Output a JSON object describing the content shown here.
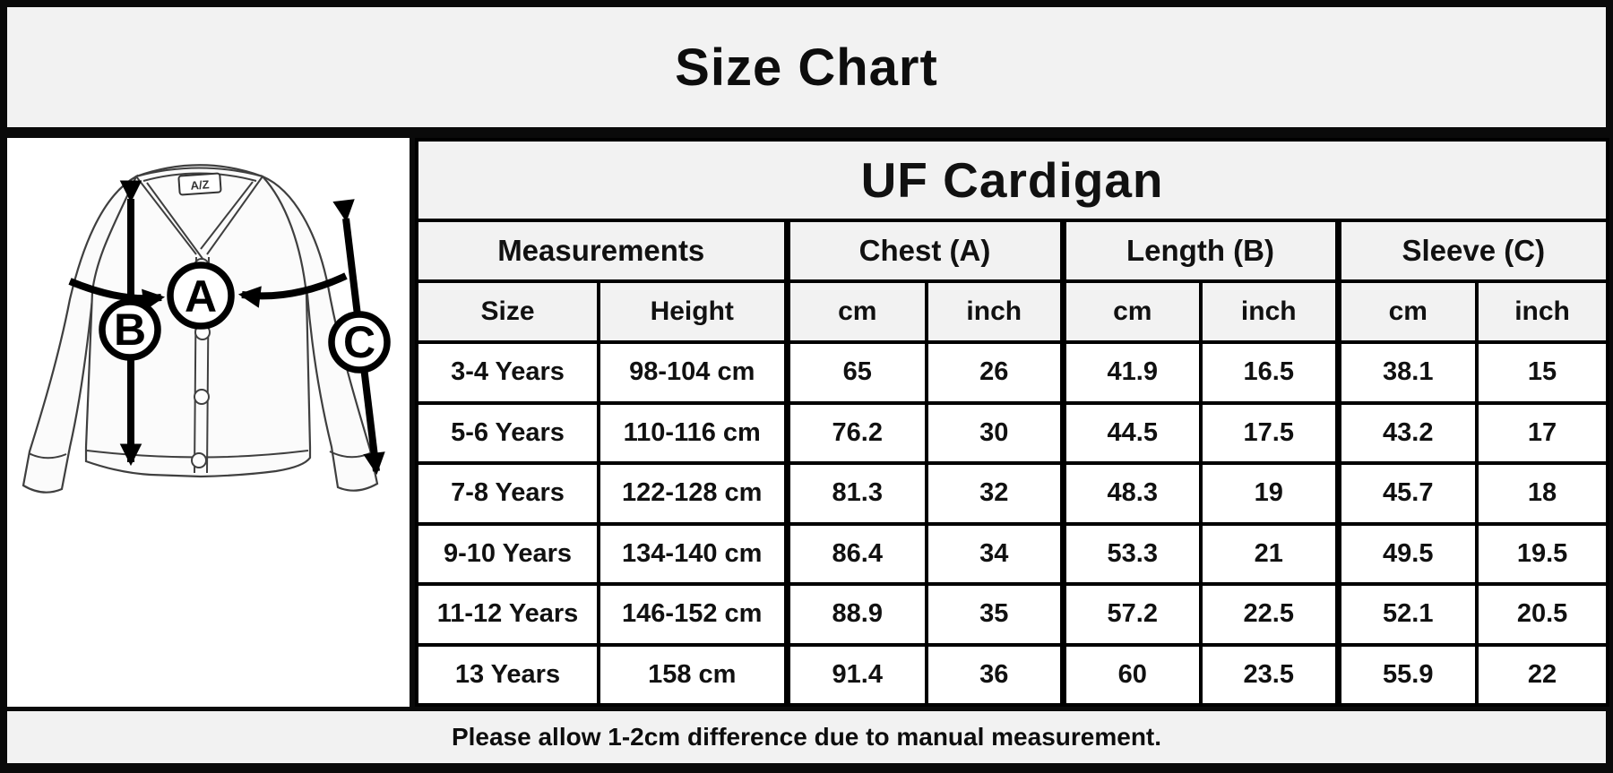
{
  "title": "Size Chart",
  "table": {
    "title": "UF Cardigan",
    "group_headers": [
      "Measurements",
      "Chest (A)",
      "Length (B)",
      "Sleeve (C)"
    ],
    "sub_headers": [
      "Size",
      "Height",
      "cm",
      "inch",
      "cm",
      "inch",
      "cm",
      "inch"
    ],
    "rows": [
      [
        "3-4 Years",
        "98-104 cm",
        "65",
        "26",
        "41.9",
        "16.5",
        "38.1",
        "15"
      ],
      [
        "5-6 Years",
        "110-116 cm",
        "76.2",
        "30",
        "44.5",
        "17.5",
        "43.2",
        "17"
      ],
      [
        "7-8 Years",
        "122-128 cm",
        "81.3",
        "32",
        "48.3",
        "19",
        "45.7",
        "18"
      ],
      [
        "9-10 Years",
        "134-140 cm",
        "86.4",
        "34",
        "53.3",
        "21",
        "49.5",
        "19.5"
      ],
      [
        "11-12 Years",
        "146-152 cm",
        "88.9",
        "35",
        "57.2",
        "22.5",
        "52.1",
        "20.5"
      ],
      [
        "13 Years",
        "158 cm",
        "91.4",
        "36",
        "60",
        "23.5",
        "55.9",
        "22"
      ]
    ]
  },
  "diagram": {
    "marker_a": "A",
    "marker_b": "B",
    "marker_c": "C",
    "brand_tag": "A/Z"
  },
  "footer_note": "Please allow 1-2cm difference due to manual measurement.",
  "colors": {
    "panel_bg": "#f2f2f2",
    "cell_bg": "#ffffff",
    "border": "#000000",
    "sketch": "#3f3f3f"
  }
}
